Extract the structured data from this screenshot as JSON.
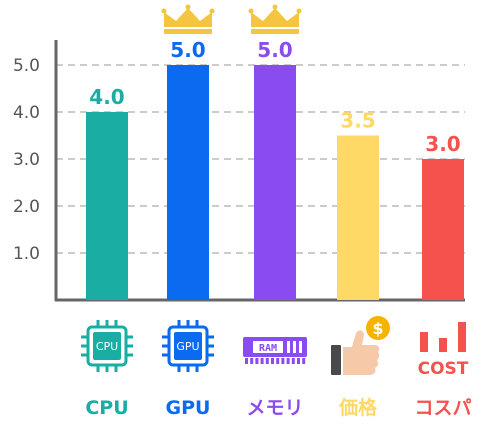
{
  "chart_data": {
    "type": "bar",
    "categories": [
      "CPU",
      "GPU",
      "メモリ",
      "価格",
      "コスパ"
    ],
    "values": [
      4.0,
      5.0,
      5.0,
      3.5,
      3.0
    ],
    "value_labels": [
      "4.0",
      "5.0",
      "5.0",
      "3.5",
      "3.0"
    ],
    "colors": [
      "#1aada3",
      "#0a6af0",
      "#8a4cf0",
      "#ffd966",
      "#f5524e"
    ],
    "icons": [
      "cpu-chip-icon",
      "gpu-chip-icon",
      "ram-module-icon",
      "thumbs-up-coin-icon",
      "cost-bars-icon"
    ],
    "icon_texts": [
      "CPU",
      "GPU",
      "RAM",
      "$",
      "COST"
    ],
    "crowned": [
      false,
      true,
      true,
      false,
      false
    ],
    "crown_icon": "crown-icon",
    "crown_color": "#f5c542",
    "yticks": [
      1.0,
      2.0,
      3.0,
      4.0,
      5.0
    ],
    "ytick_labels": [
      "1.0",
      "2.0",
      "3.0",
      "4.0",
      "5.0"
    ],
    "ylim": [
      0,
      5
    ],
    "grid": "dashed horizontal",
    "title": "",
    "xlabel": "",
    "ylabel": ""
  }
}
